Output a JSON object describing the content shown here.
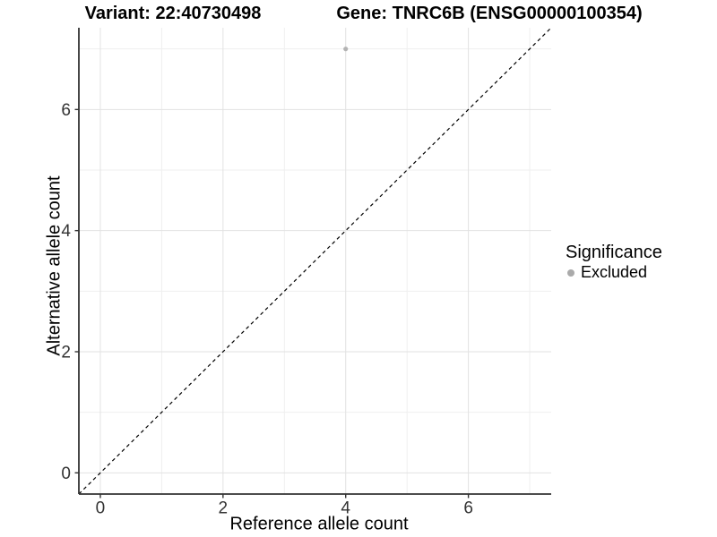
{
  "titles": {
    "left": "Variant: 22:40730498",
    "right": "Gene: TNRC6B (ENSG00000100354)"
  },
  "chart_data": {
    "type": "scatter",
    "title": "Variant: 22:40730498   Gene: TNRC6B (ENSG00000100354)",
    "xlabel": "Reference allele count",
    "ylabel": "Alternative allele count",
    "xlim": [
      -0.35,
      7.35
    ],
    "ylim": [
      -0.35,
      7.35
    ],
    "xticks": [
      0,
      2,
      4,
      6
    ],
    "yticks": [
      0,
      2,
      4,
      6
    ],
    "minor_gridlines_x": [
      1,
      3,
      5,
      7
    ],
    "minor_gridlines_y": [
      1,
      3,
      5,
      7
    ],
    "grid": true,
    "points": [
      {
        "x": 4,
        "y": 7,
        "series": "Excluded",
        "color": "#b3b3b3",
        "radius": 2.6
      }
    ],
    "reference_line": {
      "type": "identity",
      "dashed": true,
      "color": "#000000",
      "from": [
        -0.35,
        -0.35
      ],
      "to": [
        7.35,
        7.35
      ]
    },
    "legend": {
      "position": "right",
      "title": "Significance",
      "items": [
        {
          "label": "Excluded",
          "color": "#aaaaaa"
        }
      ]
    }
  },
  "colors": {
    "background": "#ffffff",
    "axis_line": "#333333",
    "grid_major": "#e2e2e2",
    "grid_minor": "#efefef",
    "tick_mark": "#333333",
    "tick_label": "#333333"
  }
}
